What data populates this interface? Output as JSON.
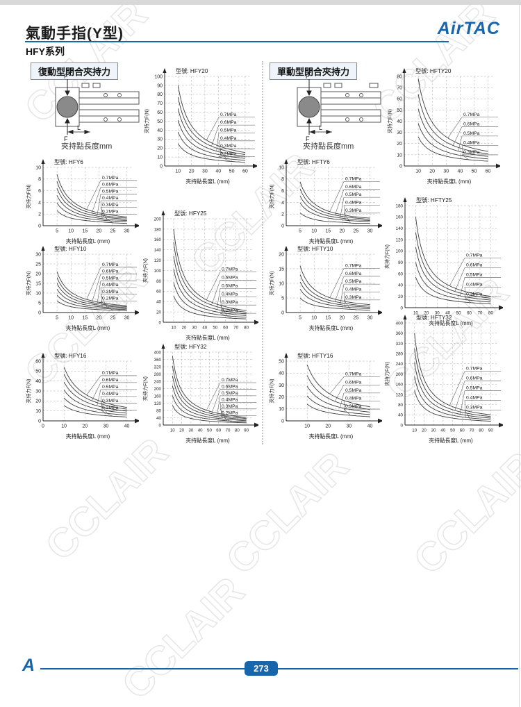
{
  "page": {
    "title": "氣動手指(Y型)",
    "series_label": "HFY系列",
    "brand": "AirTAC",
    "page_number": "273",
    "watermark": "CCLAIR",
    "accent_color": "#1766ab"
  },
  "columns": [
    {
      "header": "復動型閉合夾持力",
      "diagram_caption": "夾持點長度mm"
    },
    {
      "header": "單動型閉合夾持力",
      "diagram_caption": "夾持點長度mm"
    }
  ],
  "diagram": {
    "force_label": "F",
    "length_label": "L"
  },
  "chart_data": [
    {
      "id": "HFY20",
      "type": "line",
      "model_label": "型號:",
      "model": "HFY20",
      "xlabel": "夾持點長度L (mm)",
      "ylabel": "夾持力F(N)",
      "ylim": [
        0,
        100
      ],
      "ystep": 10,
      "xticks": [
        10,
        20,
        30,
        40,
        50,
        60
      ],
      "x_show_zero": false,
      "grid": true,
      "legend_position": "right-callouts",
      "series": [
        {
          "name": "0.7MPa",
          "values": [
            90,
            45,
            30,
            22.5,
            18,
            15
          ]
        },
        {
          "name": "0.6MPa",
          "values": [
            77,
            38.5,
            25.7,
            19.3,
            15.4,
            12.8
          ]
        },
        {
          "name": "0.5MPa",
          "values": [
            64,
            32,
            21.3,
            16,
            12.8,
            10.7
          ]
        },
        {
          "name": "0.4MPa",
          "values": [
            51,
            25.5,
            17,
            12.8,
            10.2,
            8.5
          ]
        },
        {
          "name": "0.3MPa",
          "values": [
            38,
            19,
            12.7,
            9.5,
            7.6,
            6.3
          ]
        },
        {
          "name": "0.2MPa",
          "values": [
            25,
            12.5,
            8.3,
            6.3,
            5,
            4.2
          ]
        }
      ]
    },
    {
      "id": "HFY6",
      "type": "line",
      "model_label": "型號:",
      "model": "HFY6",
      "xlabel": "夾持點長度L (mm)",
      "ylabel": "夾持力F(N)",
      "ylim": [
        0,
        10
      ],
      "ystep": 2,
      "xticks": [
        5,
        10,
        15,
        20,
        25,
        30
      ],
      "x_show_zero": false,
      "grid": true,
      "legend_position": "right-callouts",
      "series": [
        {
          "name": "0.7MPa",
          "values": [
            8.8,
            4.4,
            2.9,
            2.2,
            1.8,
            1.5
          ]
        },
        {
          "name": "0.6MPa",
          "values": [
            7.6,
            3.8,
            2.5,
            1.9,
            1.5,
            1.3
          ]
        },
        {
          "name": "0.5MPa",
          "values": [
            6.4,
            3.2,
            2.1,
            1.6,
            1.3,
            1.1
          ]
        },
        {
          "name": "0.4MPa",
          "values": [
            5.2,
            2.6,
            1.7,
            1.3,
            1.0,
            0.9
          ]
        },
        {
          "name": "0.3MPa",
          "values": [
            3.9,
            2.0,
            1.3,
            1.0,
            0.8,
            0.7
          ]
        },
        {
          "name": "0.2MPa",
          "values": [
            2.6,
            1.3,
            0.9,
            0.7,
            0.5,
            0.4
          ]
        }
      ]
    },
    {
      "id": "HFY25",
      "type": "line",
      "model_label": "型號:",
      "model": "HFY25",
      "xlabel": "夾持點長度L (mm)",
      "ylabel": "夾持力F(N)",
      "ylim": [
        0,
        200
      ],
      "ystep": 20,
      "xticks": [
        10,
        20,
        30,
        40,
        50,
        60,
        70,
        80
      ],
      "x_show_zero": false,
      "grid": true,
      "legend_position": "right-callouts",
      "series": [
        {
          "name": "0.7MPa",
          "values": [
            180,
            90,
            60,
            45,
            36,
            30,
            25.7,
            22.5
          ]
        },
        {
          "name": "0.6MPa",
          "values": [
            155,
            77.5,
            51.7,
            38.8,
            31,
            25.8,
            22.1,
            19.4
          ]
        },
        {
          "name": "0.5MPa",
          "values": [
            128,
            64,
            42.7,
            32,
            25.6,
            21.3,
            18.3,
            16
          ]
        },
        {
          "name": "0.4MPa",
          "values": [
            103,
            51.5,
            34.3,
            25.8,
            20.6,
            17.2,
            14.7,
            12.9
          ]
        },
        {
          "name": "0.3MPa",
          "values": [
            77,
            38.5,
            25.7,
            19.3,
            15.4,
            12.8,
            11,
            9.6
          ]
        },
        {
          "name": "0.2MPa",
          "values": [
            51,
            25.5,
            17,
            12.8,
            10.2,
            8.5,
            7.3,
            6.4
          ]
        }
      ]
    },
    {
      "id": "HFY10",
      "type": "line",
      "model_label": "型號:",
      "model": "HFY10",
      "xlabel": "夾持點長度L (mm)",
      "ylabel": "夾持力F(N)",
      "ylim": [
        0,
        30
      ],
      "ystep": 5,
      "xticks": [
        5,
        10,
        15,
        20,
        25,
        30
      ],
      "x_show_zero": false,
      "grid": true,
      "legend_position": "right-callouts",
      "series": [
        {
          "name": "0.7MPa",
          "values": [
            21,
            10.5,
            7,
            5.3,
            4.2,
            3.5
          ]
        },
        {
          "name": "0.6MPa",
          "values": [
            18,
            9,
            6,
            4.5,
            3.6,
            3
          ]
        },
        {
          "name": "0.5MPa",
          "values": [
            15,
            7.5,
            5,
            3.8,
            3,
            2.5
          ]
        },
        {
          "name": "0.4MPa",
          "values": [
            12,
            6,
            4,
            3,
            2.4,
            2
          ]
        },
        {
          "name": "0.3MPa",
          "values": [
            9,
            4.5,
            3,
            2.3,
            1.8,
            1.5
          ]
        },
        {
          "name": "0.2MPa",
          "values": [
            6,
            3,
            2,
            1.5,
            1.2,
            1
          ]
        }
      ]
    },
    {
      "id": "HFY16",
      "type": "line",
      "model_label": "型號:",
      "model": "HFY16",
      "xlabel": "夾持點長度L (mm)",
      "ylabel": "夾持力F(N)",
      "ylim": [
        0,
        60
      ],
      "ystep": 10,
      "xticks": [
        10,
        20,
        30,
        40
      ],
      "x_show_zero": true,
      "grid": true,
      "legend_position": "right-callouts",
      "series": [
        {
          "name": "0.7MPa",
          "values": [
            54,
            27,
            18,
            13.5
          ]
        },
        {
          "name": "0.6MPa",
          "values": [
            47,
            23.5,
            15.7,
            11.8
          ]
        },
        {
          "name": "0.5MPa",
          "values": [
            39,
            19.5,
            13,
            9.8
          ]
        },
        {
          "name": "0.4MPa",
          "values": [
            31,
            15.5,
            10.3,
            7.8
          ]
        },
        {
          "name": "0.3MPa",
          "values": [
            23,
            11.5,
            7.7,
            5.8
          ]
        },
        {
          "name": "0.2MPa",
          "values": [
            15.5,
            7.8,
            5.2,
            3.9
          ]
        }
      ]
    },
    {
      "id": "HFY32",
      "type": "line",
      "model_label": "型號:",
      "model": "HFY32",
      "xlabel": "夾持點長度L (mm)",
      "ylabel": "夾持力F(N)",
      "ylim": [
        0,
        400
      ],
      "ystep": 40,
      "xticks": [
        10,
        20,
        30,
        40,
        50,
        60,
        70,
        80,
        90
      ],
      "x_show_zero": false,
      "grid": true,
      "legend_position": "right-callouts",
      "series": [
        {
          "name": "0.7MPa",
          "values": [
            380,
            190,
            126.7,
            95,
            76,
            63.3,
            54.3,
            47.5,
            42.2
          ]
        },
        {
          "name": "0.6MPa",
          "values": [
            325,
            162.5,
            108.3,
            81.3,
            65,
            54.2,
            46.4,
            40.6,
            36.1
          ]
        },
        {
          "name": "0.5MPa",
          "values": [
            270,
            135,
            90,
            67.5,
            54,
            45,
            38.6,
            33.8,
            30
          ]
        },
        {
          "name": "0.4MPa",
          "values": [
            216,
            108,
            72,
            54,
            43.2,
            36,
            30.9,
            27,
            24
          ]
        },
        {
          "name": "0.3MPa",
          "values": [
            162,
            81,
            54,
            40.5,
            32.4,
            27,
            23.1,
            20.3,
            18
          ]
        },
        {
          "name": "0.2MPa",
          "values": [
            108,
            54,
            36,
            27,
            21.6,
            18,
            15.4,
            13.5,
            12
          ]
        }
      ]
    },
    {
      "id": "HFTY20",
      "type": "line",
      "model_label": "型號:",
      "model": "HFTY20",
      "xlabel": "夾持點長度L (mm)",
      "ylabel": "夾持力F(N)",
      "ylim": [
        0,
        80
      ],
      "ystep": 10,
      "xticks": [
        10,
        20,
        30,
        40,
        50,
        60
      ],
      "x_show_zero": false,
      "grid": true,
      "legend_position": "right-callouts",
      "series": [
        {
          "name": "0.7MPa",
          "values": [
            78,
            39,
            26,
            19.5,
            15.6,
            13
          ]
        },
        {
          "name": "0.6MPa",
          "values": [
            64,
            32,
            21.3,
            16,
            12.8,
            10.7
          ]
        },
        {
          "name": "0.5MPa",
          "values": [
            51,
            25.5,
            17,
            12.8,
            10.2,
            8.5
          ]
        },
        {
          "name": "0.4MPa",
          "values": [
            38,
            19,
            12.7,
            9.5,
            7.6,
            6.3
          ]
        },
        {
          "name": "0.3MPa",
          "values": [
            26,
            13,
            8.7,
            6.5,
            5.2,
            4.3
          ]
        }
      ]
    },
    {
      "id": "HFTY6",
      "type": "line",
      "model_label": "型號:",
      "model": "HFTY6",
      "xlabel": "夾持點長度L (mm)",
      "ylabel": "夾持力F(N)",
      "ylim": [
        0,
        10
      ],
      "ystep": 2,
      "xticks": [
        5,
        10,
        15,
        20,
        25,
        30
      ],
      "x_show_zero": false,
      "grid": true,
      "legend_position": "right-callouts",
      "series": [
        {
          "name": "0.7MPa",
          "values": [
            7.5,
            3.8,
            2.5,
            1.9,
            1.5,
            1.3
          ]
        },
        {
          "name": "0.6MPa",
          "values": [
            6.3,
            3.2,
            2.1,
            1.6,
            1.3,
            1.1
          ]
        },
        {
          "name": "0.5MPa",
          "values": [
            5.1,
            2.6,
            1.7,
            1.3,
            1.0,
            0.9
          ]
        },
        {
          "name": "0.4MPa",
          "values": [
            3.9,
            2.0,
            1.3,
            1.0,
            0.8,
            0.7
          ]
        },
        {
          "name": "0.3MPa",
          "values": [
            2.2,
            1.1,
            0.7,
            0.6,
            0.4,
            0.4
          ]
        }
      ]
    },
    {
      "id": "HFTY25",
      "type": "line",
      "model_label": "型號:",
      "model": "HFTY25",
      "xlabel": "夾持點長度L (mm)",
      "ylabel": "夾持力F(N)",
      "ylim": [
        0,
        180
      ],
      "ystep": 20,
      "xticks": [
        10,
        20,
        30,
        40,
        50,
        60,
        70,
        80
      ],
      "x_show_zero": false,
      "grid": true,
      "legend_position": "right-callouts",
      "series": [
        {
          "name": "0.7MPa",
          "values": [
            160,
            80,
            53.3,
            40,
            32,
            26.7,
            22.9,
            20
          ]
        },
        {
          "name": "0.6MPa",
          "values": [
            133,
            66.5,
            44.3,
            33.3,
            26.6,
            22.2,
            19,
            16.6
          ]
        },
        {
          "name": "0.5MPa",
          "values": [
            107,
            53.5,
            35.7,
            26.8,
            21.4,
            17.8,
            15.3,
            13.4
          ]
        },
        {
          "name": "0.4MPa",
          "values": [
            80,
            40,
            26.7,
            20,
            16,
            13.3,
            11.4,
            10
          ]
        },
        {
          "name": "0.3MPa",
          "values": [
            54,
            27,
            18,
            13.5,
            10.8,
            9,
            7.7,
            6.8
          ]
        }
      ]
    },
    {
      "id": "HFTY10",
      "type": "line",
      "model_label": "型號:",
      "model": "HFTY10",
      "xlabel": "夾持點長度L (mm)",
      "ylabel": "夾持力F(N)",
      "ylim": [
        0,
        20
      ],
      "ystep": 5,
      "xticks": [
        5,
        10,
        15,
        20,
        25,
        30
      ],
      "x_show_zero": false,
      "grid": true,
      "legend_position": "right-callouts",
      "series": [
        {
          "name": "0.7MPa",
          "values": [
            16,
            8,
            5.3,
            4,
            3.2,
            2.7
          ]
        },
        {
          "name": "0.6MPa",
          "values": [
            13,
            6.5,
            4.3,
            3.3,
            2.6,
            2.2
          ]
        },
        {
          "name": "0.5MPa",
          "values": [
            10.5,
            5.3,
            3.5,
            2.6,
            2.1,
            1.8
          ]
        },
        {
          "name": "0.4MPa",
          "values": [
            8,
            4,
            2.7,
            2,
            1.6,
            1.3
          ]
        },
        {
          "name": "0.3MPa",
          "values": [
            5,
            2.5,
            1.7,
            1.3,
            1,
            0.8
          ]
        }
      ]
    },
    {
      "id": "HFTY16",
      "type": "line",
      "model_label": "型號:",
      "model": "HFTY16",
      "xlabel": "夾持點長度L (mm)",
      "ylabel": "夾持力F(N)",
      "ylim": [
        0,
        50
      ],
      "ystep": 10,
      "xticks": [
        10,
        20,
        30,
        40
      ],
      "x_show_zero": false,
      "grid": true,
      "legend_position": "right-callouts",
      "series": [
        {
          "name": "0.7MPa",
          "values": [
            47,
            23.5,
            15.7,
            11.8
          ]
        },
        {
          "name": "0.6MPa",
          "values": [
            38,
            19,
            12.7,
            9.5
          ]
        },
        {
          "name": "0.5MPa",
          "values": [
            29,
            14.5,
            9.7,
            7.3
          ]
        },
        {
          "name": "0.4MPa",
          "values": [
            21,
            10.5,
            7,
            5.3
          ]
        },
        {
          "name": "0.3MPa",
          "values": [
            14,
            7,
            4.7,
            3.5
          ]
        }
      ]
    },
    {
      "id": "HFTY32",
      "type": "line",
      "model_label": "型號:",
      "model": "HFTY32",
      "xlabel": "夾持點長度L (mm)",
      "ylabel": "夾持力F(N)",
      "ylim": [
        0,
        400
      ],
      "ystep": 40,
      "xticks": [
        10,
        20,
        30,
        40,
        50,
        60,
        70,
        80,
        90
      ],
      "x_show_zero": false,
      "grid": true,
      "legend_position": "right-callouts",
      "series": [
        {
          "name": "0.7MPa",
          "values": [
            360,
            180,
            120,
            90,
            72,
            60,
            51.4,
            45,
            40
          ]
        },
        {
          "name": "0.6MPa",
          "values": [
            300,
            150,
            100,
            75,
            60,
            50,
            42.9,
            37.5,
            33.3
          ]
        },
        {
          "name": "0.5MPa",
          "values": [
            245,
            122.5,
            81.7,
            61.3,
            49,
            40.8,
            35,
            30.6,
            27.2
          ]
        },
        {
          "name": "0.4MPa",
          "values": [
            190,
            95,
            63.3,
            47.5,
            38,
            31.7,
            27.1,
            23.8,
            21.1
          ]
        },
        {
          "name": "0.3MPa",
          "values": [
            135,
            67.5,
            45,
            33.8,
            27,
            22.5,
            19.3,
            16.9,
            15
          ]
        }
      ]
    }
  ]
}
